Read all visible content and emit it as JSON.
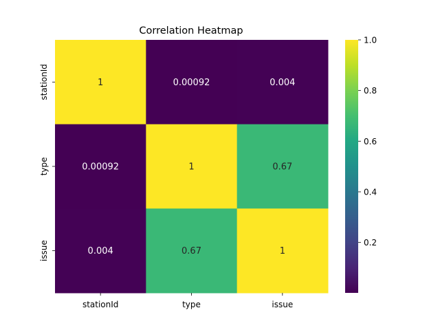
{
  "chart_data": {
    "type": "heatmap",
    "title": "Correlation Heatmap",
    "x_categories": [
      "stationId",
      "type",
      "issue"
    ],
    "y_categories": [
      "stationId",
      "type",
      "issue"
    ],
    "values": [
      [
        1,
        0.00092,
        0.004
      ],
      [
        0.00092,
        1,
        0.67
      ],
      [
        0.004,
        0.67,
        1
      ]
    ],
    "value_labels": [
      [
        "1",
        "0.00092",
        "0.004"
      ],
      [
        "0.00092",
        "1",
        "0.67"
      ],
      [
        "0.004",
        "0.67",
        "1"
      ]
    ],
    "colormap": "viridis",
    "colorbar": {
      "vmin": 0.00092,
      "vmax": 1.0,
      "ticks": [
        0.2,
        0.4,
        0.6,
        0.8,
        1.0
      ],
      "tick_labels": [
        "0.2",
        "0.4",
        "0.6",
        "0.8",
        "1.0"
      ]
    },
    "grid": false,
    "legend": "colorbar-right"
  }
}
